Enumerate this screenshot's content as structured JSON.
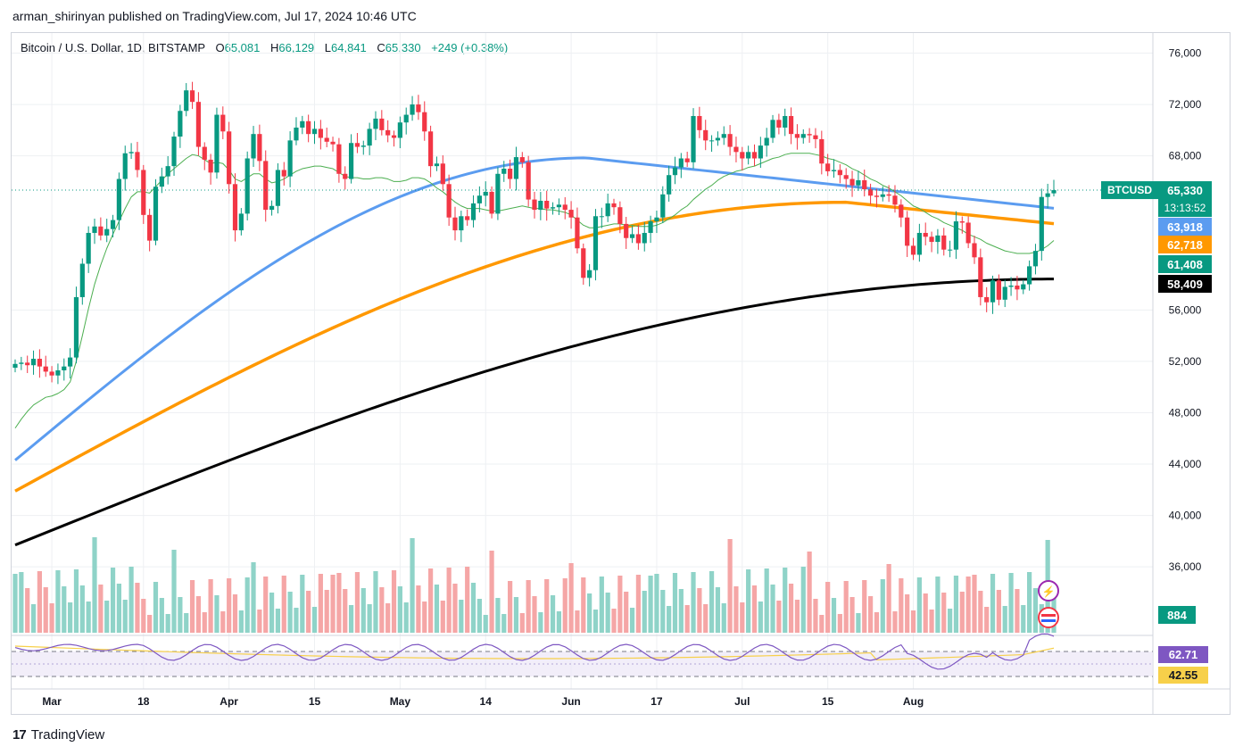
{
  "header": {
    "published": "arman_shirinyan published on TradingView.com, Jul 17, 2024 10:46 UTC"
  },
  "legend": {
    "symbol": "Bitcoin / U.S. Dollar, 1D, BITSTAMP",
    "open_label": "O",
    "open": "65,081",
    "high_label": "H",
    "high": "66,129",
    "low_label": "L",
    "low": "64,841",
    "close_label": "C",
    "close": "65,330",
    "change": "+249 (+0.38%)"
  },
  "footer": {
    "brand": "TradingView",
    "logo_text": "17"
  },
  "colors": {
    "up": "#089981",
    "down": "#f23645",
    "vol_up": "#8fd3c8",
    "vol_down": "#f5a6a6",
    "ma_green": "#4caf50",
    "ma_blue": "#5b9cf0",
    "ma_orange": "#ff9800",
    "ma_black": "#000000",
    "rsi": "#7e57c2",
    "rsi_ma": "#f7d04a"
  },
  "chart_data": {
    "type": "candlestick",
    "title": "Bitcoin / U.S. Dollar, 1D, BITSTAMP",
    "price_axis": {
      "ticks": [
        "76,000",
        "72,000",
        "68,000",
        "56,000",
        "52,000",
        "48,000",
        "44,000",
        "40,000",
        "36,000"
      ],
      "tick_values": [
        76000,
        72000,
        68000,
        56000,
        52000,
        48000,
        44000,
        40000,
        36000
      ],
      "range": [
        32600,
        78000
      ]
    },
    "time_axis": {
      "labels": [
        "Mar",
        "18",
        "Apr",
        "15",
        "May",
        "14",
        "Jun",
        "17",
        "Jul",
        "15",
        "Aug"
      ],
      "label_index": [
        6,
        21,
        35,
        49,
        63,
        77,
        91,
        105,
        119,
        133,
        147
      ]
    },
    "price_labels": [
      {
        "name": "BTCUSD",
        "text": "BTCUSD",
        "value": "65,330",
        "timer": "13:13:52",
        "color": "#089981",
        "price": 65330
      },
      {
        "name": "ma-blue",
        "text": "63,918",
        "color": "#5b9cf0",
        "price": 63918
      },
      {
        "name": "ma-orange",
        "text": "62,718",
        "color": "#ff9800",
        "price": 62718
      },
      {
        "name": "ma-green",
        "text": "61,408",
        "color": "#089981",
        "price": 61408
      },
      {
        "name": "ma-black",
        "text": "58,409",
        "color": "#000000",
        "price": 58409
      }
    ],
    "volume_label": "884",
    "rsi": {
      "value": "62.71",
      "ma_value": "42.55"
    },
    "closes": [
      51800,
      51900,
      51700,
      52200,
      51600,
      51200,
      50900,
      51300,
      51600,
      52300,
      57000,
      59600,
      62000,
      62500,
      61800,
      62300,
      63000,
      66200,
      68200,
      68300,
      66900,
      63400,
      61400,
      65600,
      66400,
      67200,
      69500,
      71500,
      73100,
      72200,
      68700,
      67700,
      66700,
      71200,
      69900,
      65800,
      62200,
      63500,
      67800,
      69700,
      67600,
      63800,
      64100,
      66900,
      66400,
      69200,
      70200,
      70700,
      69700,
      70100,
      69400,
      69100,
      68900,
      66600,
      66200,
      69000,
      68700,
      68800,
      70100,
      70900,
      70000,
      69600,
      69400,
      70600,
      71200,
      72000,
      71400,
      69900,
      67200,
      67400,
      65800,
      63200,
      62200,
      63300,
      63000,
      64300,
      64900,
      65200,
      63500,
      66600,
      67000,
      66200,
      67900,
      67500,
      64600,
      63800,
      64500,
      63900,
      64000,
      64200,
      63800,
      63200,
      60800,
      58500,
      59100,
      63300,
      63300,
      64300,
      64000,
      62700,
      61600,
      61900,
      61200,
      62000,
      62900,
      63200,
      65000,
      66500,
      67100,
      67800,
      67500,
      71100,
      70000,
      69200,
      69200,
      69400,
      69700,
      68700,
      68300,
      67800,
      68300,
      67800,
      68800,
      69400,
      70800,
      70200,
      71100,
      69700,
      69400,
      69700,
      69600,
      69300,
      67400,
      66800,
      66900,
      66500,
      66200,
      65700,
      66100,
      65400,
      64900,
      64800,
      65000,
      64900,
      64200,
      63200,
      61000,
      60300,
      62000,
      61700,
      61300,
      61800,
      60700,
      60700,
      62900,
      62800,
      61200,
      60100,
      57000,
      56600,
      58300,
      56800,
      57800,
      57900,
      57600,
      58000,
      59400,
      60600,
      64800,
      65081,
      65330
    ],
    "ma_green_values": [
      46800,
      47500,
      48100,
      48600,
      48900,
      49200,
      49300,
      49500,
      49800,
      50400,
      52000,
      54000,
      56100,
      58000,
      59500,
      60800,
      61900,
      62900,
      63900,
      64800,
      65200,
      65200,
      65100,
      65600,
      66100,
      66600,
      67000,
      67400,
      67800,
      68100,
      68000,
      67700,
      67400,
      67500,
      67400,
      66900,
      66200,
      66000,
      66300,
      66600,
      66600,
      66200,
      65900,
      66000,
      66200,
      66500,
      66800,
      67000,
      67100,
      67200,
      67200,
      67100,
      67000,
      66700,
      66400,
      66300,
      66300,
      66200,
      66200,
      66300,
      66300,
      66200,
      66000,
      66000,
      66100,
      66300,
      66300,
      66200,
      65900,
      65500,
      65200,
      64800,
      64400,
      64100,
      63900,
      63900,
      63900,
      63800,
      63700,
      63700,
      63800,
      63900,
      64000,
      64100,
      64000,
      63900,
      63900,
      63800,
      63800,
      63700,
      63600,
      63400,
      63000,
      62600,
      62400,
      62400,
      62500,
      62600,
      62700,
      62700,
      62600,
      62600,
      62500,
      62500,
      62500,
      62600,
      62800,
      63100,
      63400,
      63800,
      64100,
      64600,
      65000,
      65400,
      65700,
      66100,
      66400,
      66600,
      66800,
      66900,
      67100,
      67200,
      67400,
      67600,
      67800,
      67900,
      68100,
      68200,
      68200,
      68200,
      68200,
      68100,
      68000,
      67800,
      67700,
      67500,
      67300,
      67000,
      66800,
      66500,
      66200,
      66000,
      65700,
      65500,
      65200,
      64900,
      64500,
      64100,
      63900,
      63600,
      63300,
      63100,
      62800,
      62600,
      62400,
      62200,
      61900,
      61700,
      61500,
      61200,
      61000,
      60800,
      60600,
      60500,
      60400,
      60400,
      60400,
      60500,
      60700,
      61000,
      61408
    ],
    "ma_blue_start": 44300,
    "ma_blue_end": 63918,
    "ma_orange_start": 41900,
    "ma_orange_end": 62718,
    "ma_black_start": 37700,
    "ma_black_end": 58409
  }
}
